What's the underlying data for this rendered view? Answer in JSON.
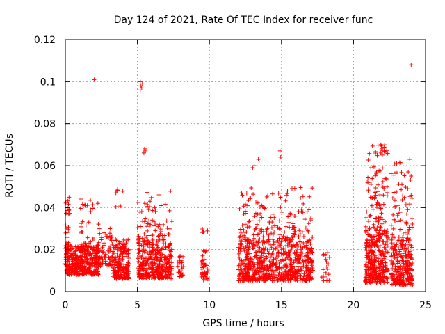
{
  "chart_data": {
    "type": "scatter",
    "title": "Day 124 of 2021, Rate Of TEC Index for receiver func",
    "xlabel": "GPS time / hours",
    "ylabel": "ROTI / TECUs",
    "xlim": [
      0,
      25
    ],
    "ylim": [
      0,
      0.12
    ],
    "xticks": [
      0,
      5,
      10,
      15,
      20,
      25
    ],
    "xtick_labels": [
      "0",
      "5",
      "10",
      "15",
      "20",
      "25"
    ],
    "yticks": [
      0,
      0.02,
      0.04,
      0.06,
      0.08,
      0.1,
      0.12
    ],
    "ytick_labels": [
      "0",
      "0.02",
      "0.04",
      "0.06",
      "0.08",
      "0.1",
      "0.12"
    ],
    "grid": true,
    "legend": "none",
    "marker": "plus",
    "color": "#ff0000",
    "series": [
      {
        "clusters": [
          {
            "x": [
              0.0,
              2.3
            ],
            "y": [
              0.008,
              0.022
            ],
            "n": 420
          },
          {
            "x": [
              0.0,
              0.3
            ],
            "y": [
              0.02,
              0.047
            ],
            "n": 24
          },
          {
            "x": [
              1.0,
              2.3
            ],
            "y": [
              0.02,
              0.046
            ],
            "n": 40
          },
          {
            "x": [
              2.3,
              3.3
            ],
            "y": [
              0.012,
              0.03
            ],
            "n": 70
          },
          {
            "x": [
              3.3,
              4.4
            ],
            "y": [
              0.006,
              0.025
            ],
            "n": 220
          },
          {
            "x": [
              3.5,
              4.0
            ],
            "y": [
              0.04,
              0.052
            ],
            "n": 8
          },
          {
            "x": [
              5.0,
              7.4
            ],
            "y": [
              0.006,
              0.025
            ],
            "n": 360
          },
          {
            "x": [
              5.0,
              7.4
            ],
            "y": [
              0.025,
              0.048
            ],
            "n": 60
          },
          {
            "x": [
              7.8,
              8.2
            ],
            "y": [
              0.007,
              0.018
            ],
            "n": 28
          },
          {
            "x": [
              9.4,
              9.9
            ],
            "y": [
              0.005,
              0.02
            ],
            "n": 40
          },
          {
            "x": [
              9.4,
              9.9
            ],
            "y": [
              0.028,
              0.03
            ],
            "n": 6
          },
          {
            "x": [
              12.0,
              17.2
            ],
            "y": [
              0.005,
              0.025
            ],
            "n": 720
          },
          {
            "x": [
              12.0,
              17.2
            ],
            "y": [
              0.025,
              0.05
            ],
            "n": 150
          },
          {
            "x": [
              17.8,
              18.4
            ],
            "y": [
              0.005,
              0.02
            ],
            "n": 24
          },
          {
            "x": [
              20.8,
              22.4
            ],
            "y": [
              0.004,
              0.03
            ],
            "n": 340
          },
          {
            "x": [
              20.8,
              22.4
            ],
            "y": [
              0.03,
              0.07
            ],
            "n": 90
          },
          {
            "x": [
              22.6,
              24.1
            ],
            "y": [
              0.003,
              0.025
            ],
            "n": 260
          },
          {
            "x": [
              22.6,
              24.1
            ],
            "y": [
              0.025,
              0.062
            ],
            "n": 70
          }
        ],
        "points": [
          [
            2.0,
            0.101
          ],
          [
            5.2,
            0.1
          ],
          [
            5.25,
            0.098
          ],
          [
            5.3,
            0.097
          ],
          [
            5.35,
            0.099
          ],
          [
            5.2,
            0.096
          ],
          [
            5.5,
            0.068
          ],
          [
            5.55,
            0.067
          ],
          [
            5.45,
            0.066
          ],
          [
            13.4,
            0.063
          ],
          [
            14.9,
            0.067
          ],
          [
            14.95,
            0.064
          ],
          [
            13.1,
            0.06
          ],
          [
            13.0,
            0.059
          ],
          [
            21.9,
            0.07
          ],
          [
            21.95,
            0.068
          ],
          [
            21.9,
            0.066
          ],
          [
            22.0,
            0.065
          ],
          [
            23.9,
            0.063
          ],
          [
            23.0,
            0.061
          ],
          [
            23.8,
            0.057
          ],
          [
            24.0,
            0.108
          ],
          [
            21.2,
            0.059
          ],
          [
            21.6,
            0.057
          ]
        ]
      }
    ]
  }
}
